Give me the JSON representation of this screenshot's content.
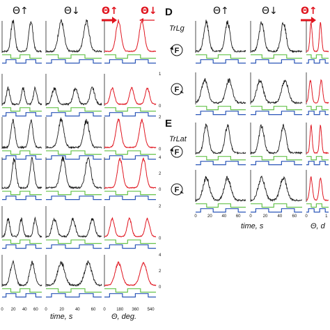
{
  "headers": {
    "left": {
      "theta_up": "Θ↑",
      "theta_down": "Θ↓",
      "red_up": "Θ↑",
      "red_down": "Θ↓"
    },
    "right": {
      "theta_up": "Θ↑",
      "theta_down": "Θ↓",
      "red_up": "Θ↑"
    }
  },
  "panel_letters": {
    "d": "D",
    "e": "E"
  },
  "group_labels": {
    "trlg": "TrLg",
    "trlat": "TrLat"
  },
  "icon_label": "F",
  "axis_labels": {
    "left_time": "time, s",
    "left_theta": "Θ, deg.",
    "right_time": "time, s",
    "right_theta": "Θ, d"
  },
  "colors": {
    "trace": "#1a1a1a",
    "trace_red": "#e0141e",
    "trace_pink": "#f29aa0",
    "green": "#66c24a",
    "blue": "#2a56b8"
  },
  "chart_data": [
    {
      "type": "line",
      "name": "left-figure",
      "x_time_ticks": [
        "0",
        "20",
        "40",
        "60"
      ],
      "x_theta_ticks": [
        "0",
        "180",
        "360",
        "540"
      ],
      "y_ticks_by_row": [
        [
          "",
          "",
          ""
        ],
        [
          "1",
          "0"
        ],
        [
          "2",
          "0"
        ],
        [
          "4",
          "2",
          "0"
        ],
        [
          "2",
          "0"
        ],
        [
          "4",
          "2",
          "0"
        ]
      ],
      "rows": [
        {
          "shape": "double-peak",
          "peak_positions_s": [
            18,
            48
          ],
          "peak_level": 0.95
        },
        {
          "shape": "triple-hump",
          "peak_positions_s": [
            10,
            35,
            55
          ],
          "peak_level": 0.5
        },
        {
          "shape": "double-peak",
          "peak_positions_s": [
            18,
            48
          ],
          "peak_level": 0.85
        },
        {
          "shape": "double-peak",
          "peak_positions_s": [
            20,
            50
          ],
          "peak_level": 0.9
        },
        {
          "shape": "triple-hump",
          "peak_positions_s": [
            10,
            32,
            55
          ],
          "peak_level": 0.55
        },
        {
          "shape": "double-hump",
          "peak_positions_s": [
            18,
            50
          ],
          "peak_level": 0.7
        }
      ]
    },
    {
      "type": "line",
      "name": "right-figure",
      "x_time_ticks": [
        "0",
        "20",
        "40",
        "60"
      ],
      "x_theta_ticks": [
        "0",
        "1"
      ],
      "y_ticks_by_row": [
        [
          "",
          ""
        ],
        [
          "",
          ""
        ],
        [
          "",
          ""
        ],
        [
          "",
          ""
        ]
      ],
      "rows": [
        {
          "shape": "double-peak",
          "peak_positions_s": [
            14,
            42
          ],
          "peak_level": 0.9
        },
        {
          "shape": "double-hump",
          "peak_positions_s": [
            12,
            44
          ],
          "peak_level": 0.7
        },
        {
          "shape": "double-peak",
          "peak_positions_s": [
            14,
            42
          ],
          "peak_level": 0.85
        },
        {
          "shape": "double-hump",
          "peak_positions_s": [
            14,
            42
          ],
          "peak_level": 0.7
        }
      ]
    }
  ]
}
